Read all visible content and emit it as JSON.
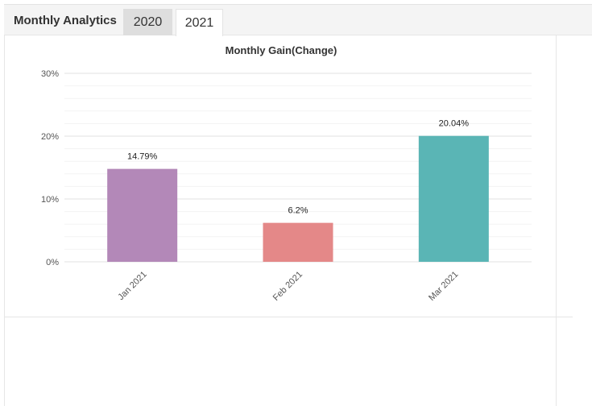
{
  "header": {
    "title": "Monthly Analytics",
    "tabs": [
      {
        "label": "2020",
        "active": false
      },
      {
        "label": "2021",
        "active": true
      }
    ]
  },
  "chart_data": {
    "type": "bar",
    "title": "Monthly Gain(Change)",
    "xlabel": "",
    "ylabel": "",
    "categories": [
      "Jan 2021",
      "Feb 2021",
      "Mar 2021"
    ],
    "values": [
      14.79,
      6.2,
      20.04
    ],
    "data_labels": [
      "14.79%",
      "6.2%",
      "20.04%"
    ],
    "colors": [
      "#b388b8",
      "#e48888",
      "#5ab5b5"
    ],
    "ylim": [
      0,
      30
    ],
    "yticks": [
      0,
      10,
      20,
      30
    ],
    "ytick_labels": [
      "0%",
      "10%",
      "20%",
      "30%"
    ],
    "grid": true,
    "legend": "none"
  }
}
